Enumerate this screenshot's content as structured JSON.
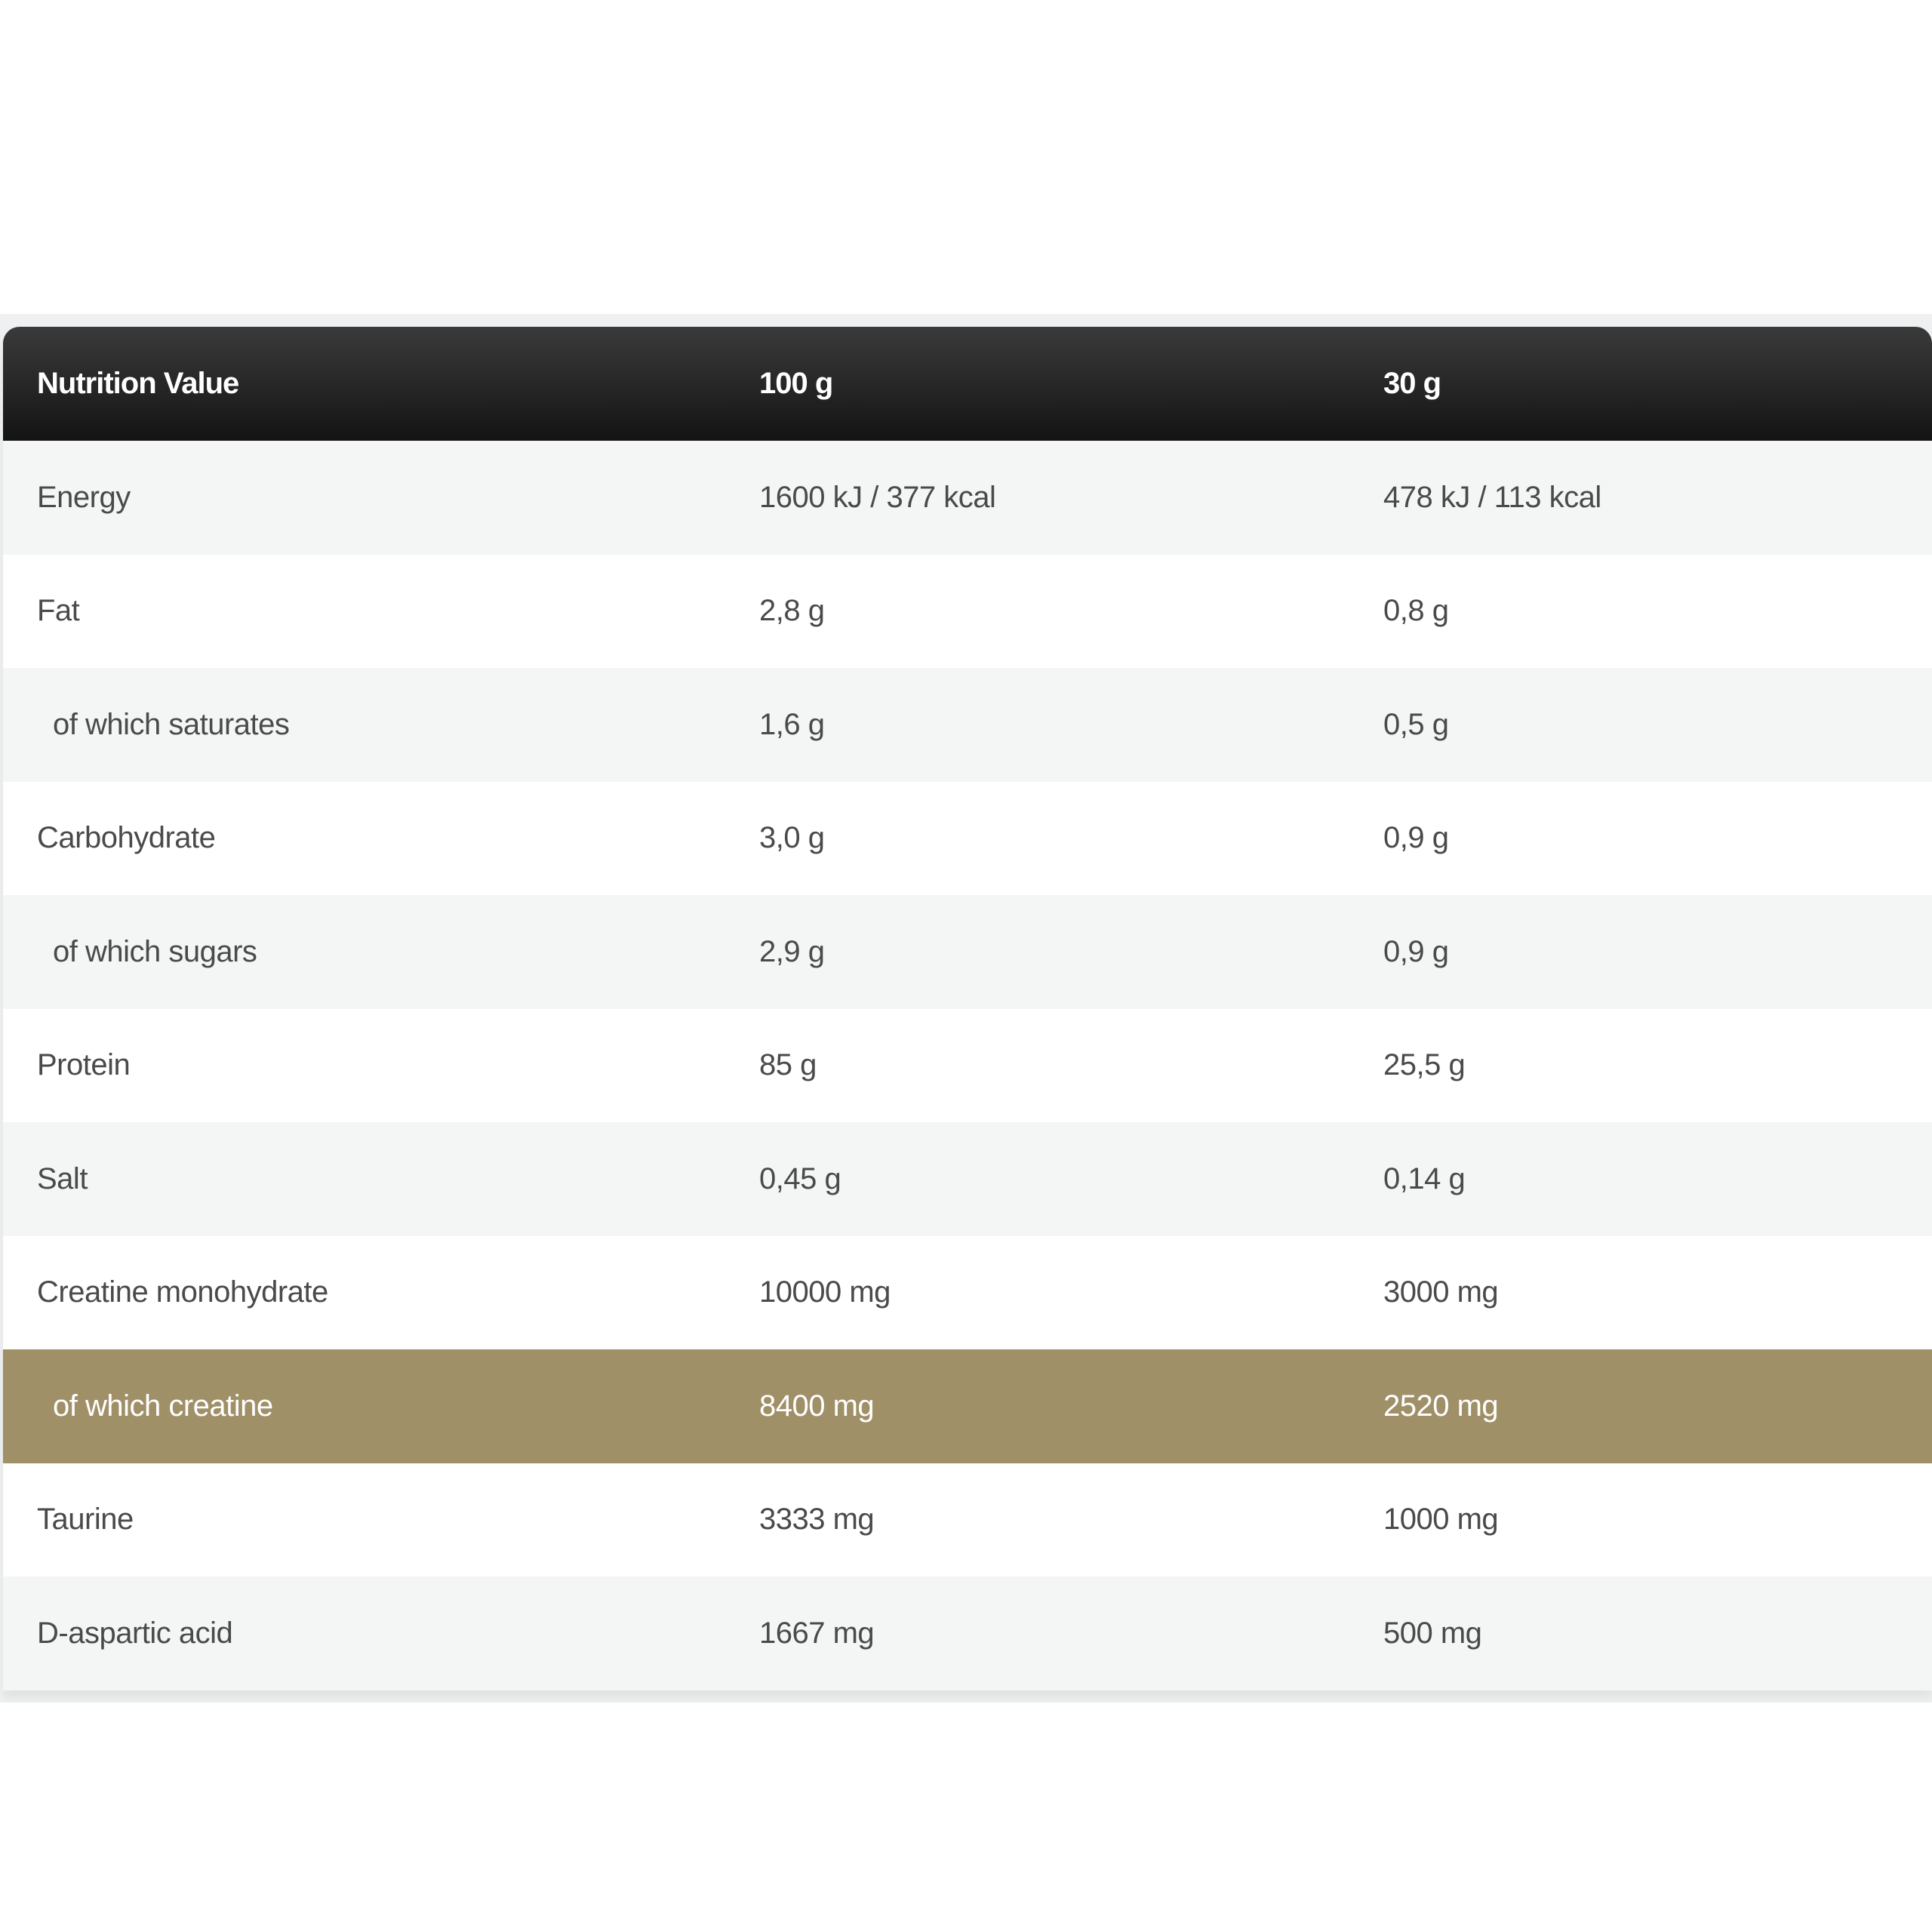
{
  "table": {
    "headers": [
      "Nutrition Value",
      "100 g",
      "30 g"
    ],
    "rows": [
      {
        "name": "Energy",
        "per100": "1600 kJ / 377 kcal",
        "per30": "478 kJ / 113 kcal",
        "indent": false
      },
      {
        "name": "Fat",
        "per100": "2,8 g",
        "per30": "0,8 g",
        "indent": false
      },
      {
        "name": "of which saturates",
        "per100": "1,6 g",
        "per30": "0,5 g",
        "indent": true
      },
      {
        "name": "Carbohydrate",
        "per100": "3,0 g",
        "per30": "0,9 g",
        "indent": false
      },
      {
        "name": "of which sugars",
        "per100": "2,9 g",
        "per30": "0,9 g",
        "indent": true
      },
      {
        "name": "Protein",
        "per100": "85 g",
        "per30": "25,5 g",
        "indent": false
      },
      {
        "name": "Salt",
        "per100": "0,45 g",
        "per30": "0,14 g",
        "indent": false
      },
      {
        "name": "Creatine monohydrate",
        "per100": "10000 mg",
        "per30": "3000 mg",
        "indent": false
      },
      {
        "name": "of which creatine",
        "per100": "8400 mg",
        "per30": "2520 mg",
        "indent": true,
        "highlight": true
      },
      {
        "name": "Taurine",
        "per100": "3333 mg",
        "per30": "1000 mg",
        "indent": false
      },
      {
        "name": "D-aspartic acid",
        "per100": "1667 mg",
        "per30": "500 mg",
        "indent": false
      }
    ]
  },
  "colors": {
    "header": "#1a1a1a",
    "highlight": "#a09068",
    "stripe": "#f4f5f5"
  }
}
